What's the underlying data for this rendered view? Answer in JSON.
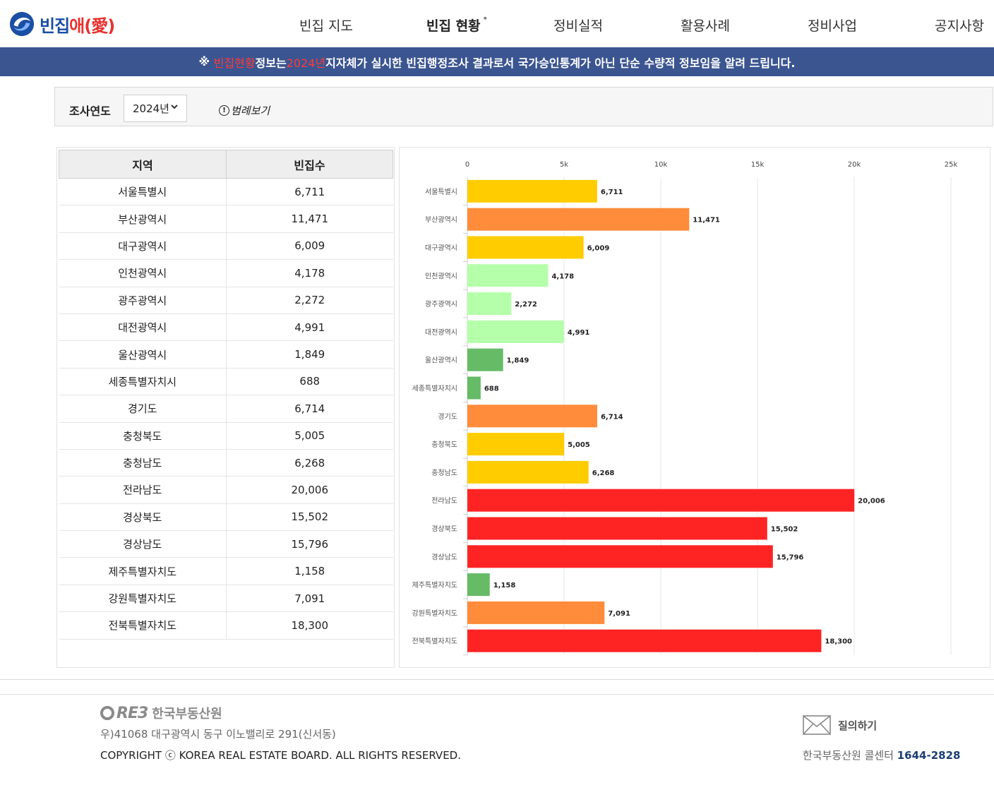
{
  "header": {
    "logo": {
      "main": "빈집",
      "accent": "애",
      "paren_open": "(",
      "heart": "愛",
      "paren_close": ")"
    },
    "nav": [
      {
        "label": "빈집 지도",
        "active": false
      },
      {
        "label": "빈집 현황",
        "active": true,
        "marker": "°"
      },
      {
        "label": "정비실적",
        "active": false
      },
      {
        "label": "활용사례",
        "active": false
      },
      {
        "label": "정비사업",
        "active": false
      },
      {
        "label": "공지사항",
        "active": false
      }
    ]
  },
  "notice": {
    "prefix": "※ ",
    "hl1": "빈집현황",
    "mid1": " 정보는 ",
    "hl2": "2024년",
    "rest": " 지자체가 실시한 빈집행정조사 결과로서 국가승인통계가 아닌 단순 수량적 정보임을 알려 드립니다."
  },
  "filter": {
    "label": "조사연도",
    "year": "2024년",
    "legend_link": "범례보기"
  },
  "table": {
    "headers": [
      "지역",
      "빈집수"
    ]
  },
  "chart_data": {
    "type": "bar",
    "orientation": "horizontal",
    "categories": [
      "서울특별시",
      "부산광역시",
      "대구광역시",
      "인천광역시",
      "광주광역시",
      "대전광역시",
      "울산광역시",
      "세종특별자치시",
      "경기도",
      "충청북도",
      "충청남도",
      "전라남도",
      "경상북도",
      "경상남도",
      "제주특별자치도",
      "강원특별자치도",
      "전북특별자치도"
    ],
    "values": [
      6711,
      11471,
      6009,
      4178,
      2272,
      4991,
      1849,
      688,
      6714,
      5005,
      6268,
      20006,
      15502,
      15796,
      1158,
      7091,
      18300
    ],
    "value_labels": [
      "6,711",
      "11,471",
      "6,009",
      "4,178",
      "2,272",
      "4,991",
      "1,849",
      "688",
      "6,714",
      "5,005",
      "6,268",
      "20,006",
      "15,502",
      "15,796",
      "1,158",
      "7,091",
      "18,300"
    ],
    "colors": [
      "#ffcc00",
      "#ff8c3a",
      "#ffcc00",
      "#b5ffaa",
      "#b5ffaa",
      "#b5ffaa",
      "#66bb66",
      "#66bb66",
      "#ff8c3a",
      "#ffcc00",
      "#ffcc00",
      "#ff2424",
      "#ff2424",
      "#ff2424",
      "#66bb66",
      "#ff8c3a",
      "#ff2424"
    ],
    "x_ticks": [
      0,
      5000,
      10000,
      15000,
      20000,
      25000
    ],
    "x_tick_labels": [
      "0",
      "5k",
      "10k",
      "15k",
      "20k",
      "25k"
    ],
    "xlim": [
      0,
      25000
    ],
    "grid": true
  },
  "footer": {
    "logo_reb": "RE3",
    "logo_org": "한국부동산원",
    "address": "우)41068 대구광역시 동구 이노밸리로 291(신서동)",
    "copyright": "COPYRIGHT ⓒ KOREA REAL ESTATE BOARD. ALL RIGHTS RESERVED.",
    "inquiry": "질의하기",
    "callcenter_label": "한국부동산원 콜센터 ",
    "callcenter_number": "1644-2828"
  }
}
